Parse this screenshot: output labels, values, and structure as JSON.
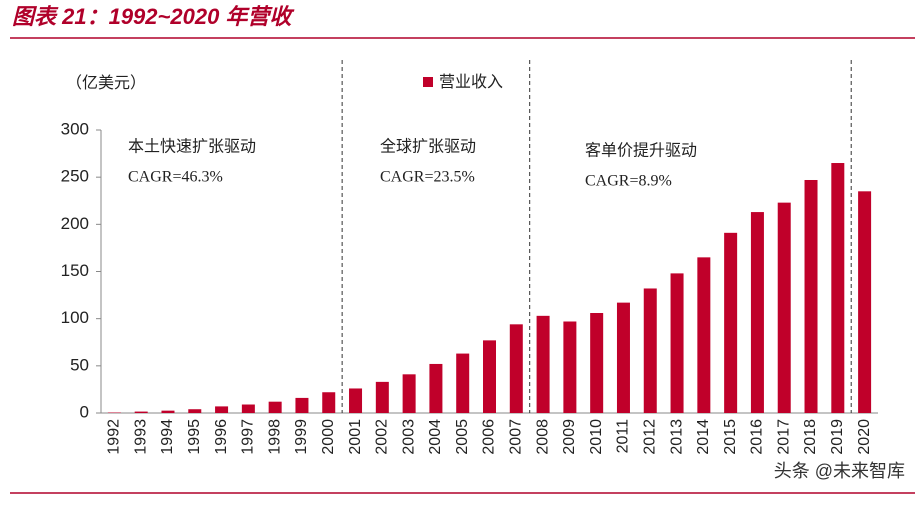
{
  "chart_data": {
    "type": "bar",
    "title": "图表 21：1992~2020 年营收",
    "y_label": "（亿美元）",
    "categories": [
      "1992",
      "1993",
      "1994",
      "1995",
      "1996",
      "1997",
      "1998",
      "1999",
      "2000",
      "2001",
      "2002",
      "2003",
      "2004",
      "2005",
      "2006",
      "2007",
      "2008",
      "2009",
      "2010",
      "2011",
      "2012",
      "2013",
      "2014",
      "2015",
      "2016",
      "2017",
      "2018",
      "2019",
      "2020"
    ],
    "series": [
      {
        "name": "营业收入",
        "color": "#c0002a",
        "values": [
          0.5,
          1.5,
          2.5,
          4,
          7,
          9,
          12,
          16,
          22,
          26,
          33,
          41,
          52,
          63,
          77,
          94,
          103,
          97,
          106,
          117,
          132,
          148,
          165,
          191,
          213,
          223,
          247,
          265,
          235
        ]
      }
    ],
    "ylim": [
      0,
      300
    ],
    "yticks": [
      0,
      50,
      100,
      150,
      200,
      250,
      300
    ],
    "legend": "top",
    "annotations": [
      {
        "label": "本土快速扩张驱动",
        "cagr": "CAGR=46.3%"
      },
      {
        "label": "全球扩张驱动",
        "cagr": "CAGR=23.5%"
      },
      {
        "label": "客单价提升驱动",
        "cagr": "CAGR=8.9%"
      }
    ],
    "source": "头条 @未来智库"
  }
}
